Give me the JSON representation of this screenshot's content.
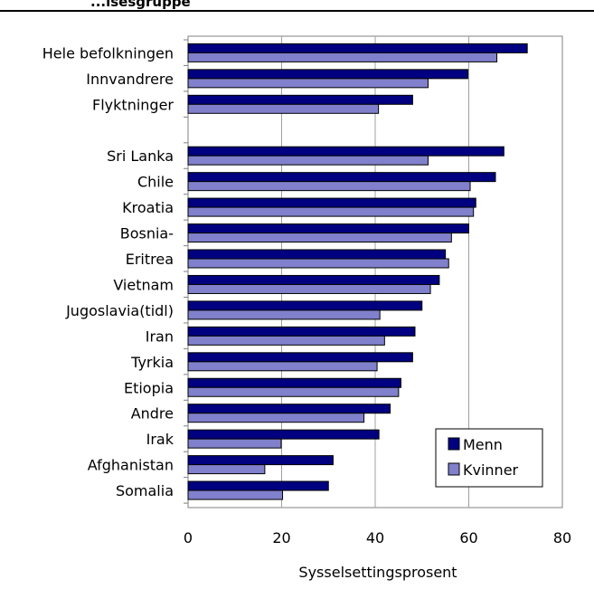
{
  "title": "...lsesgruppe",
  "chart_data": {
    "type": "bar",
    "orientation": "horizontal",
    "categories": [
      "Hele befolkningen",
      "Innvandrere",
      "Flyktninger",
      "",
      "Sri Lanka",
      "Chile",
      "Kroatia",
      "Bosnia-",
      "Eritrea",
      "Vietnam",
      "Jugoslavia(tidl)",
      "Iran",
      "Tyrkia",
      "Etiopia",
      "Andre",
      "Irak",
      "Afghanistan",
      "Somalia"
    ],
    "series": [
      {
        "name": "Menn",
        "color": "#000080",
        "values": [
          72.5,
          59.8,
          48.0,
          null,
          67.5,
          65.7,
          61.5,
          60.0,
          55.0,
          53.7,
          50.0,
          48.5,
          48.0,
          45.5,
          43.2,
          40.8,
          31.0,
          30.0
        ]
      },
      {
        "name": "Kvinner",
        "color": "#8080CC",
        "values": [
          66.0,
          51.3,
          40.7,
          null,
          51.3,
          60.3,
          61.0,
          56.3,
          55.7,
          51.8,
          41.0,
          42.0,
          40.4,
          45.0,
          37.6,
          19.9,
          16.4,
          20.2
        ]
      }
    ],
    "xlabel": "Sysselsettingsprosent",
    "ylabel": "",
    "xlim": [
      0,
      80
    ],
    "x_ticks": [
      "0",
      "20",
      "40",
      "60",
      "80"
    ],
    "grid": true,
    "legend": "bottom-right"
  }
}
